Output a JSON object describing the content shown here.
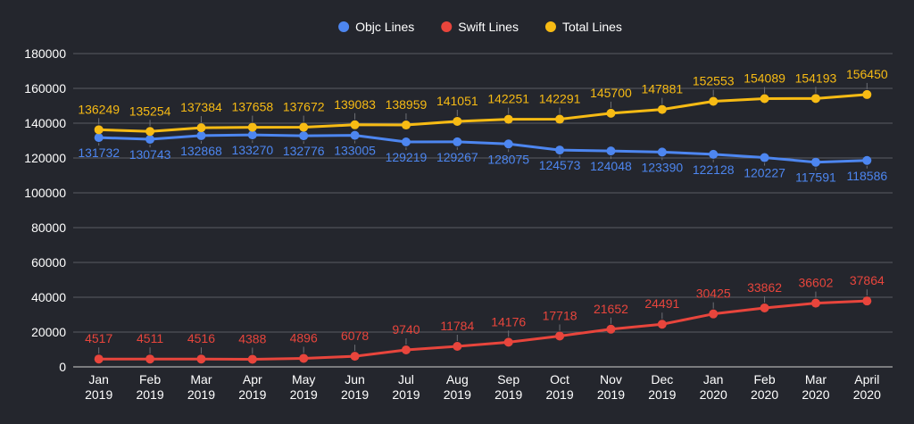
{
  "chart_data": {
    "type": "line",
    "title": "",
    "xlabel": "",
    "ylabel": "",
    "ylim": [
      0,
      180000
    ],
    "yticks": [
      0,
      20000,
      40000,
      60000,
      80000,
      100000,
      120000,
      140000,
      160000,
      180000
    ],
    "grid": true,
    "legend_position": "top-center",
    "background": "#24262d",
    "grid_color": "#5a5c63",
    "axis_text_color": "#ffffff",
    "categories": [
      [
        "Jan",
        "2019"
      ],
      [
        "Feb",
        "2019"
      ],
      [
        "Mar",
        "2019"
      ],
      [
        "Apr",
        "2019"
      ],
      [
        "May",
        "2019"
      ],
      [
        "Jun",
        "2019"
      ],
      [
        "Jul",
        "2019"
      ],
      [
        "Aug",
        "2019"
      ],
      [
        "Sep",
        "2019"
      ],
      [
        "Oct",
        "2019"
      ],
      [
        "Nov",
        "2019"
      ],
      [
        "Dec",
        "2019"
      ],
      [
        "Jan",
        "2020"
      ],
      [
        "Feb",
        "2020"
      ],
      [
        "Mar",
        "2020"
      ],
      [
        "April",
        "2020"
      ]
    ],
    "series": [
      {
        "name": "Objc Lines",
        "color": "#4d86f0",
        "label_position": "below",
        "values": [
          131732,
          130743,
          132868,
          133270,
          132776,
          133005,
          129219,
          129267,
          128075,
          124573,
          124048,
          123390,
          122128,
          120227,
          117591,
          118586
        ]
      },
      {
        "name": "Swift Lines",
        "color": "#e8453c",
        "label_position": "above",
        "values": [
          4517,
          4511,
          4516,
          4388,
          4896,
          6078,
          9740,
          11784,
          14176,
          17718,
          21652,
          24491,
          30425,
          33862,
          36602,
          37864
        ]
      },
      {
        "name": "Total Lines",
        "color": "#f7bb14",
        "label_position": "above",
        "values": [
          136249,
          135254,
          137384,
          137658,
          137672,
          139083,
          138959,
          141051,
          142251,
          142291,
          145700,
          147881,
          152553,
          154089,
          154193,
          156450
        ]
      }
    ]
  }
}
